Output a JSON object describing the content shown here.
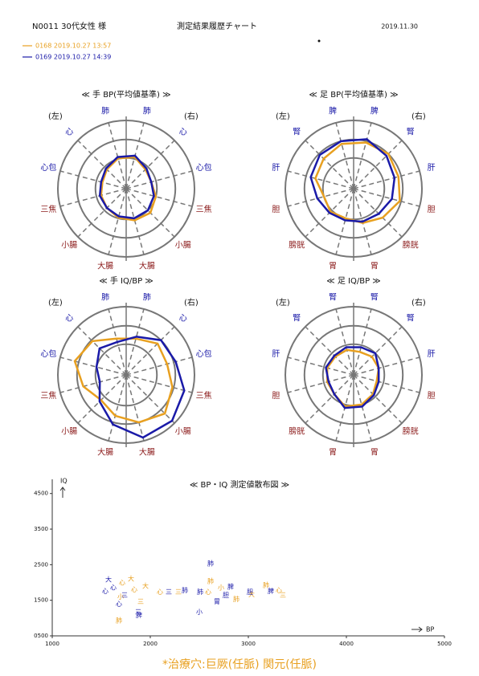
{
  "header": {
    "patient": "N0011  30代女性 様",
    "title": "測定結果履歴チャート",
    "date": "2019.11.30"
  },
  "legend": [
    {
      "name": "0168 2019.10.27 13:57",
      "color": "#e8a020"
    },
    {
      "name": "0169 2019.10.27 14:39",
      "color": "#1a1aa8"
    }
  ],
  "chart_data": [
    {
      "type": "radar",
      "title": "≪ 手 BP(平均値基準) ≫",
      "left_label": "(左)",
      "right_label": "(右)",
      "categories": [
        "肺",
        "心",
        "心包",
        "三焦",
        "小腸",
        "大腸",
        "大腸",
        "小腸",
        "三焦",
        "心包",
        "心",
        "肺"
      ],
      "category_colors": [
        "#1a1aa8",
        "#1a1aa8",
        "#1a1aa8",
        "#8b1a1a",
        "#8b1a1a",
        "#8b1a1a",
        "#8b1a1a",
        "#8b1a1a",
        "#8b1a1a",
        "#1a1aa8",
        "#1a1aa8",
        "#1a1aa8"
      ],
      "rlim": [
        0,
        100
      ],
      "rticks": [
        45,
        72,
        100
      ],
      "series": [
        {
          "color": "#e8a020",
          "values": [
            48,
            40,
            38,
            45,
            50,
            48,
            44,
            40,
            38,
            36,
            40,
            46
          ]
        },
        {
          "color": "#1a1aa8",
          "values": [
            50,
            42,
            38,
            42,
            45,
            45,
            42,
            40,
            40,
            38,
            42,
            48
          ]
        }
      ]
    },
    {
      "type": "radar",
      "title": "≪ 足 BP(平均値基準) ≫",
      "left_label": "(左)",
      "right_label": "(右)",
      "categories": [
        "脾",
        "腎",
        "肝",
        "胆",
        "膀胱",
        "胃",
        "胃",
        "膀胱",
        "胆",
        "肝",
        "腎",
        "脾"
      ],
      "category_colors": [
        "#1a1aa8",
        "#1a1aa8",
        "#1a1aa8",
        "#8b1a1a",
        "#8b1a1a",
        "#8b1a1a",
        "#8b1a1a",
        "#8b1a1a",
        "#8b1a1a",
        "#1a1aa8",
        "#1a1aa8",
        "#1a1aa8"
      ],
      "rlim": [
        0,
        100
      ],
      "rticks": [
        45,
        72,
        100
      ],
      "series": [
        {
          "color": "#e8a020",
          "values": [
            70,
            72,
            68,
            70,
            60,
            52,
            45,
            48,
            45,
            58,
            62,
            68
          ]
        },
        {
          "color": "#1a1aa8",
          "values": [
            75,
            68,
            62,
            58,
            52,
            50,
            48,
            50,
            55,
            65,
            70,
            72
          ]
        }
      ]
    },
    {
      "type": "radar",
      "title": "≪ 手 IQ/BP ≫",
      "left_label": "(左)",
      "right_label": "(右)",
      "categories": [
        "肺",
        "心",
        "心包",
        "三焦",
        "小腸",
        "大腸",
        "大腸",
        "小腸",
        "三焦",
        "心包",
        "心",
        "肺"
      ],
      "category_colors": [
        "#1a1aa8",
        "#1a1aa8",
        "#1a1aa8",
        "#8b1a1a",
        "#8b1a1a",
        "#8b1a1a",
        "#8b1a1a",
        "#8b1a1a",
        "#8b1a1a",
        "#1a1aa8",
        "#1a1aa8",
        "#1a1aa8"
      ],
      "rlim": [
        0,
        100
      ],
      "rticks": [
        45,
        72,
        100
      ],
      "series": [
        {
          "color": "#e8a020",
          "values": [
            55,
            65,
            62,
            70,
            80,
            72,
            62,
            52,
            65,
            78,
            70,
            55
          ]
        },
        {
          "color": "#1a1aa8",
          "values": [
            58,
            72,
            75,
            88,
            95,
            95,
            75,
            55,
            40,
            45,
            55,
            50
          ]
        }
      ]
    },
    {
      "type": "radar",
      "title": "≪ 足 IQ/BP ≫",
      "left_label": "(左)",
      "right_label": "(右)",
      "categories": [
        "腎",
        "腎",
        "肝",
        "胆",
        "膀胱",
        "胃",
        "胃",
        "膀胱",
        "胆",
        "肝",
        "腎",
        "腎"
      ],
      "category_colors": [
        "#1a1aa8",
        "#1a1aa8",
        "#1a1aa8",
        "#8b1a1a",
        "#8b1a1a",
        "#8b1a1a",
        "#8b1a1a",
        "#8b1a1a",
        "#8b1a1a",
        "#1a1aa8",
        "#1a1aa8",
        "#1a1aa8"
      ],
      "rlim": [
        0,
        100
      ],
      "rticks": [
        45,
        72,
        100
      ],
      "series": [
        {
          "color": "#e8a020",
          "values": [
            35,
            38,
            38,
            35,
            40,
            45,
            48,
            40,
            40,
            40,
            38,
            38
          ]
        },
        {
          "color": "#1a1aa8",
          "values": [
            42,
            45,
            38,
            38,
            42,
            48,
            50,
            40,
            38,
            42,
            40,
            42
          ]
        }
      ]
    },
    {
      "type": "scatter",
      "title": "≪ BP・IQ 測定値散布図 ≫",
      "x_label": "BP",
      "y_label": "IQ",
      "xlim": [
        1000,
        5000
      ],
      "xticks": [
        1000,
        2000,
        3000,
        4000,
        5000
      ],
      "ylim": [
        500,
        4900
      ],
      "yticks": [
        {
          "value": 500,
          "label": "0500"
        },
        1500,
        2500,
        3500,
        4500
      ],
      "series": [
        {
          "color": "#e8a020",
          "x": [
            1803,
            1713,
            1836,
            1697,
            1902,
            1680,
            1951,
            2098,
            2287,
            2615,
            2590,
            2721,
            2877,
            3033,
            3180,
            3311,
            3352
          ],
          "y": [
            2100,
            1986,
            1803,
            1597,
            1460,
            934,
            1894,
            1734,
            1734,
            2031,
            1734,
            1849,
            1529,
            1666,
            1917,
            1780,
            1643
          ],
          "labels": [
            "大",
            "心",
            "心",
            "小",
            "三",
            "肺",
            "大",
            "心",
            "三",
            "肺",
            "心",
            "小",
            "肺",
            "大",
            "肺",
            "心",
            "三"
          ]
        },
        {
          "color": "#1a1aa8",
          "x": [
            1574,
            1541,
            1623,
            1738,
            1680,
            1885,
            1877,
            2189,
            2352,
            2508,
            2615,
            2500,
            2680,
            2770,
            2820,
            3016,
            3230
          ],
          "y": [
            2077,
            1757,
            1849,
            1643,
            1391,
            1071,
            1163,
            1734,
            1780,
            1734,
            2534,
            1163,
            1460,
            1643,
            1871,
            1734,
            1757
          ],
          "labels": [
            "大",
            "心",
            "心",
            "三",
            "心",
            "脾",
            "三",
            "三",
            "肺",
            "肺",
            "肺",
            "小",
            "胃",
            "胆",
            "脾",
            "胆",
            "脾"
          ]
        }
      ]
    }
  ],
  "footer": "*治療穴:巨厥(任脈) 関元(任脈)"
}
